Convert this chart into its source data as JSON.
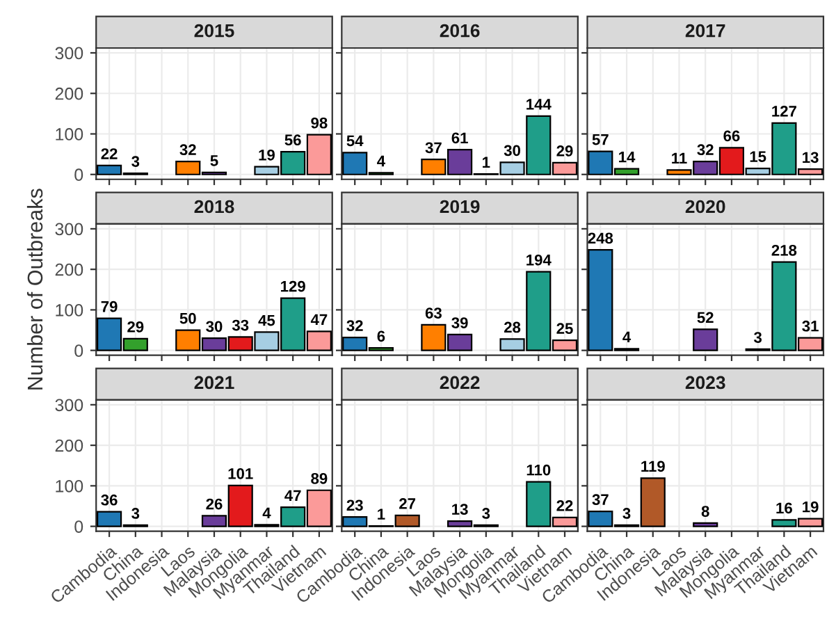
{
  "chart_data": [
    {
      "type": "bar",
      "title": "2015",
      "categories": [
        "Cambodia",
        "China",
        "Indonesia",
        "Laos",
        "Malaysia",
        "Mongolia",
        "Myanmar",
        "Thailand",
        "Vietnam"
      ],
      "values": [
        22,
        3,
        null,
        32,
        5,
        null,
        19,
        56,
        98
      ],
      "colors": [
        "#1f78b4",
        "#33a02c",
        "#b15928",
        "#ff7f00",
        "#6a3d9a",
        "#e31a1c",
        "#a6cee3",
        "#1f9e89",
        "#fb9a99"
      ],
      "ylim": [
        -12,
        312
      ],
      "yticks": [
        0,
        100,
        200,
        300
      ],
      "grid": true,
      "data_labels": true,
      "tick_labels": "y"
    },
    {
      "type": "bar",
      "title": "2016",
      "categories": [
        "Cambodia",
        "China",
        "Indonesia",
        "Laos",
        "Malaysia",
        "Mongolia",
        "Myanmar",
        "Thailand",
        "Vietnam"
      ],
      "values": [
        54,
        4,
        null,
        37,
        61,
        1,
        30,
        144,
        29
      ],
      "colors": [
        "#1f78b4",
        "#33a02c",
        "#b15928",
        "#ff7f00",
        "#6a3d9a",
        "#e31a1c",
        "#a6cee3",
        "#1f9e89",
        "#fb9a99"
      ],
      "ylim": [
        -12,
        312
      ],
      "yticks": [
        0,
        100,
        200,
        300
      ],
      "grid": true,
      "data_labels": true,
      "tick_labels": false
    },
    {
      "type": "bar",
      "title": "2017",
      "categories": [
        "Cambodia",
        "China",
        "Indonesia",
        "Laos",
        "Malaysia",
        "Mongolia",
        "Myanmar",
        "Thailand",
        "Vietnam"
      ],
      "values": [
        57,
        14,
        null,
        11,
        32,
        66,
        15,
        127,
        13
      ],
      "colors": [
        "#1f78b4",
        "#33a02c",
        "#b15928",
        "#ff7f00",
        "#6a3d9a",
        "#e31a1c",
        "#a6cee3",
        "#1f9e89",
        "#fb9a99"
      ],
      "ylim": [
        -12,
        312
      ],
      "yticks": [
        0,
        100,
        200,
        300
      ],
      "grid": true,
      "data_labels": true,
      "tick_labels": false
    },
    {
      "type": "bar",
      "title": "2018",
      "ylabel": "Number of Outbreaks",
      "categories": [
        "Cambodia",
        "China",
        "Indonesia",
        "Laos",
        "Malaysia",
        "Mongolia",
        "Myanmar",
        "Thailand",
        "Vietnam"
      ],
      "values": [
        79,
        29,
        null,
        50,
        30,
        33,
        45,
        129,
        47
      ],
      "colors": [
        "#1f78b4",
        "#33a02c",
        "#b15928",
        "#ff7f00",
        "#6a3d9a",
        "#e31a1c",
        "#a6cee3",
        "#1f9e89",
        "#fb9a99"
      ],
      "ylim": [
        -12,
        312
      ],
      "yticks": [
        0,
        100,
        200,
        300
      ],
      "grid": true,
      "data_labels": true,
      "tick_labels": "y"
    },
    {
      "type": "bar",
      "title": "2019",
      "categories": [
        "Cambodia",
        "China",
        "Indonesia",
        "Laos",
        "Malaysia",
        "Mongolia",
        "Myanmar",
        "Thailand",
        "Vietnam"
      ],
      "values": [
        32,
        6,
        null,
        63,
        39,
        null,
        28,
        194,
        25
      ],
      "colors": [
        "#1f78b4",
        "#33a02c",
        "#b15928",
        "#ff7f00",
        "#6a3d9a",
        "#e31a1c",
        "#a6cee3",
        "#1f9e89",
        "#fb9a99"
      ],
      "ylim": [
        -12,
        312
      ],
      "yticks": [
        0,
        100,
        200,
        300
      ],
      "grid": true,
      "data_labels": true,
      "tick_labels": false
    },
    {
      "type": "bar",
      "title": "2020",
      "categories": [
        "Cambodia",
        "China",
        "Indonesia",
        "Laos",
        "Malaysia",
        "Mongolia",
        "Myanmar",
        "Thailand",
        "Vietnam"
      ],
      "values": [
        248,
        4,
        null,
        null,
        52,
        null,
        3,
        218,
        31
      ],
      "colors": [
        "#1f78b4",
        "#33a02c",
        "#b15928",
        "#ff7f00",
        "#6a3d9a",
        "#e31a1c",
        "#a6cee3",
        "#1f9e89",
        "#fb9a99"
      ],
      "ylim": [
        -12,
        312
      ],
      "yticks": [
        0,
        100,
        200,
        300
      ],
      "grid": true,
      "data_labels": true,
      "tick_labels": false
    },
    {
      "type": "bar",
      "title": "2021",
      "categories": [
        "Cambodia",
        "China",
        "Indonesia",
        "Laos",
        "Malaysia",
        "Mongolia",
        "Myanmar",
        "Thailand",
        "Vietnam"
      ],
      "values": [
        36,
        3,
        null,
        null,
        26,
        101,
        4,
        47,
        89
      ],
      "colors": [
        "#1f78b4",
        "#33a02c",
        "#b15928",
        "#ff7f00",
        "#6a3d9a",
        "#e31a1c",
        "#a6cee3",
        "#1f9e89",
        "#fb9a99"
      ],
      "ylim": [
        -12,
        312
      ],
      "yticks": [
        0,
        100,
        200,
        300
      ],
      "grid": true,
      "data_labels": true
    },
    {
      "type": "bar",
      "title": "2022",
      "categories": [
        "Cambodia",
        "China",
        "Indonesia",
        "Laos",
        "Malaysia",
        "Mongolia",
        "Myanmar",
        "Thailand",
        "Vietnam"
      ],
      "values": [
        23,
        1,
        27,
        null,
        13,
        3,
        null,
        110,
        22
      ],
      "colors": [
        "#1f78b4",
        "#33a02c",
        "#b15928",
        "#ff7f00",
        "#6a3d9a",
        "#e31a1c",
        "#a6cee3",
        "#1f9e89",
        "#fb9a99"
      ],
      "ylim": [
        -12,
        312
      ],
      "yticks": [
        0,
        100,
        200,
        300
      ],
      "grid": true,
      "data_labels": true,
      "tick_labels": "x"
    },
    {
      "type": "bar",
      "title": "2023",
      "categories": [
        "Cambodia",
        "China",
        "Indonesia",
        "Laos",
        "Malaysia",
        "Mongolia",
        "Myanmar",
        "Thailand",
        "Vietnam"
      ],
      "values": [
        37,
        3,
        119,
        null,
        8,
        null,
        null,
        16,
        19
      ],
      "colors": [
        "#1f78b4",
        "#33a02c",
        "#b15928",
        "#ff7f00",
        "#6a3d9a",
        "#e31a1c",
        "#a6cee3",
        "#1f9e89",
        "#fb9a99"
      ],
      "ylim": [
        -12,
        312
      ],
      "yticks": [
        0,
        100,
        200,
        300
      ],
      "grid": true,
      "data_labels": true,
      "tick_labels": "x"
    }
  ]
}
